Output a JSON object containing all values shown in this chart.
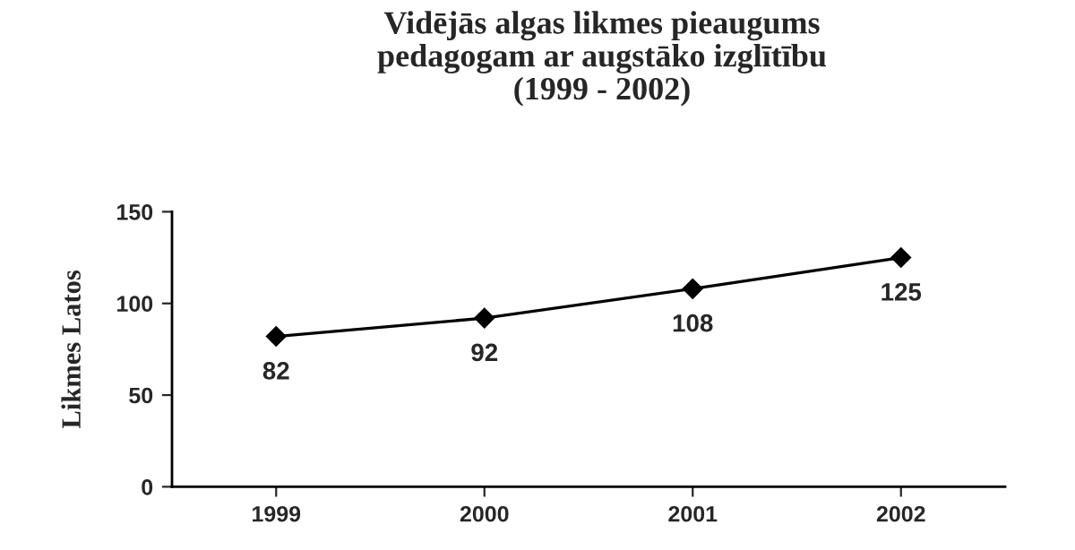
{
  "chart_data": {
    "type": "line",
    "title": "Vidējās algas likmes pieaugums\npedagogam ar augstāko izglītību\n(1999 - 2002)",
    "ylabel": "Likmes Latos",
    "categories": [
      "1999",
      "2000",
      "2001",
      "2002"
    ],
    "series": [
      {
        "color": "#000000",
        "values": [
          82,
          92,
          108,
          125
        ]
      }
    ],
    "ylim": [
      0,
      150
    ],
    "yticks": [
      0,
      50,
      100,
      150
    ],
    "marker": "diamond",
    "line_style": "solid",
    "data_labels": true,
    "grid": false,
    "legend": false
  }
}
